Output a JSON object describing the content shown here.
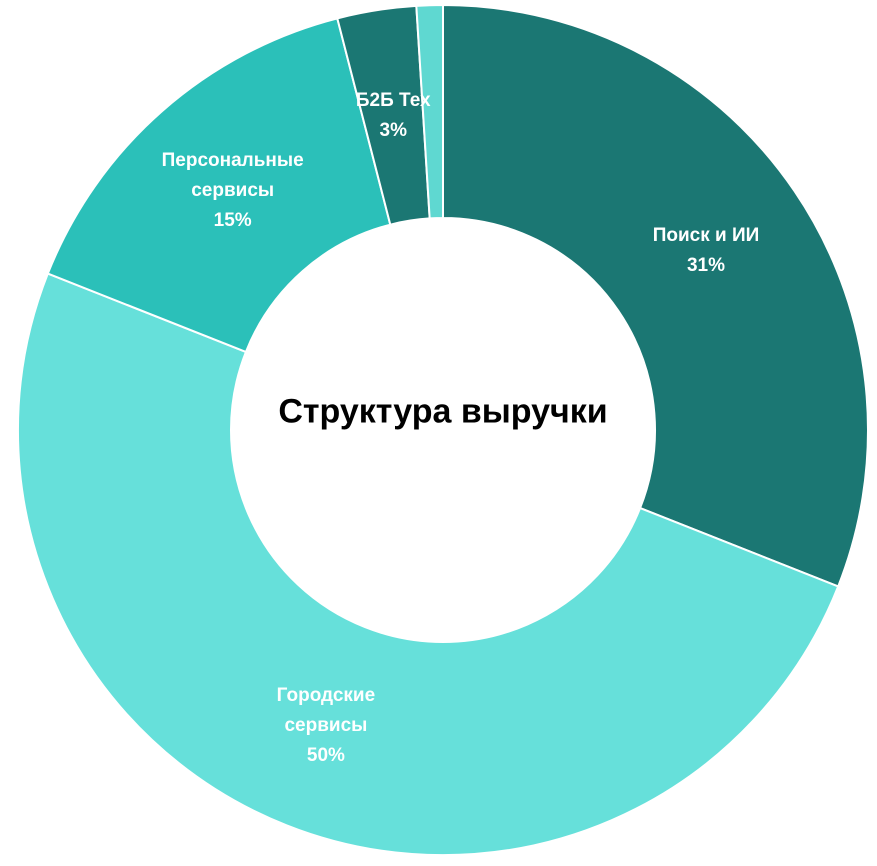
{
  "chart_data": {
    "type": "donut",
    "title": "Структура выручки",
    "categories": [
      "Поиск и ИИ",
      "Городские сервисы",
      "Персональные сервисы",
      "Б2Б Тех",
      null
    ],
    "values": [
      31,
      50,
      15,
      3,
      1
    ],
    "value_labels": [
      "31%",
      "50%",
      "15%",
      "3%",
      null
    ],
    "colors": [
      "#1b7773",
      "#66e0da",
      "#2bc0b9",
      "#1b7773",
      "#5fd8d1"
    ]
  }
}
